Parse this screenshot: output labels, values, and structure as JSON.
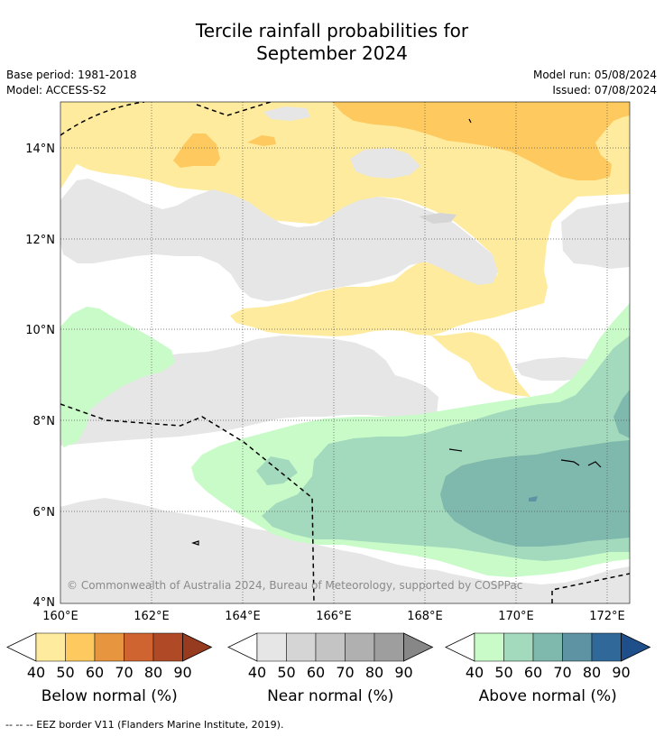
{
  "title": {
    "line1": "Tercile rainfall probabilities for",
    "line2": "September 2024"
  },
  "meta": {
    "base_period": "Base period: 1981-2018",
    "model": "Model: ACCESS-S2",
    "model_run": "Model run: 05/08/2024",
    "issued": "Issued: 07/08/2024"
  },
  "map": {
    "lat_labels": [
      "14°N",
      "12°N",
      "10°N",
      "8°N",
      "6°N",
      "4°N"
    ],
    "lon_labels": [
      "160°E",
      "162°E",
      "164°E",
      "166°E",
      "168°E",
      "170°E",
      "172°E"
    ],
    "copyright": "© Commonwealth of Australia 2024, Bureau of Meteorology, supported by COSPPac"
  },
  "colorbars": [
    {
      "title": "Below normal (%)",
      "ticks": [
        "40",
        "50",
        "60",
        "70",
        "80",
        "90"
      ],
      "colors": [
        "#ffffff",
        "#feeb9d",
        "#fec95f",
        "#e8953f",
        "#cf6430",
        "#b04a26",
        "#963a20"
      ]
    },
    {
      "title": "Near normal (%)",
      "ticks": [
        "40",
        "50",
        "60",
        "70",
        "80",
        "90"
      ],
      "colors": [
        "#ffffff",
        "#e6e6e6",
        "#d5d5d5",
        "#c4c4c4",
        "#b0b0b0",
        "#9e9e9e",
        "#878787"
      ]
    },
    {
      "title": "Above normal (%)",
      "ticks": [
        "40",
        "50",
        "60",
        "70",
        "80",
        "90"
      ],
      "colors": [
        "#ffffff",
        "#c9fbc9",
        "#a3d9bc",
        "#7fb8ad",
        "#5e93a3",
        "#2f6899",
        "#1f4f8a"
      ]
    }
  ],
  "footnote": "--  --  -- EEZ border V11 (Flanders Marine Institute, 2019)."
}
